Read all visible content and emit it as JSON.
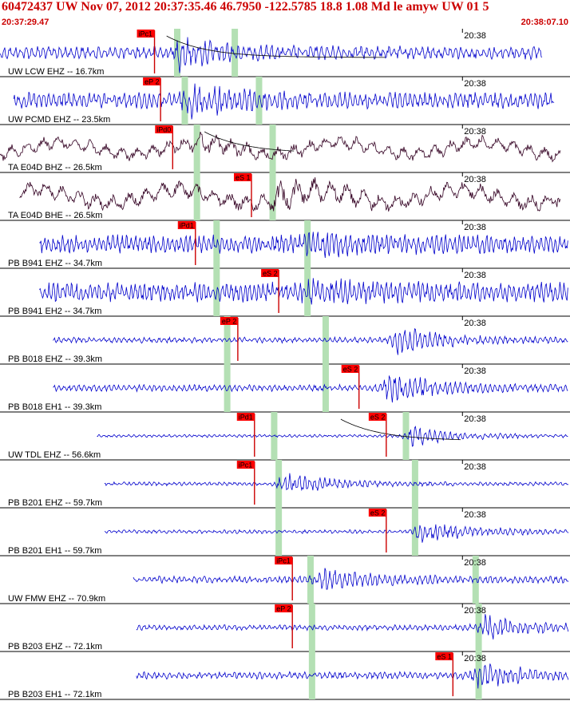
{
  "header": {
    "title": "60472437 UW Nov 07, 2012 20:37:35.46   46.7950 -122.5785 18.8 1.08 Md le amyw UW 01   5",
    "start_time": "20:37:29.47",
    "end_time": "20:38:07.10"
  },
  "colors": {
    "header_text": "#cc0000",
    "trace_blue": "#0000cc",
    "trace_dark": "#330022",
    "pick_box": "#ff0000",
    "pick_line": "#cc0000",
    "window": "#b4e0b4",
    "grid": "#000000"
  },
  "chart_data": {
    "type": "line",
    "title": "60472437 UW Nov 07, 2012 20:37:35.46   46.7950 -122.5785 18.8 1.08 Md le amyw UW 01   5",
    "xlim": [
      "20:37:29.47",
      "20:38:07.10"
    ],
    "tick_label": "20:38",
    "tick_time_s": 30.53,
    "total_s": 37.63,
    "series": [
      {
        "name": "UW LCW EHZ -- 16.7km",
        "color": "blue",
        "start_s": 0.0,
        "end_s": 35.8,
        "amp": 0.28,
        "osc": 0.9,
        "burst_s": 11.8,
        "burst_amp": 0.55,
        "picks": [
          {
            "label": "iPc1",
            "t_s": 10.2
          }
        ],
        "windows": [
          11.7,
          15.5
        ],
        "coda": [
          11.0,
          25.5
        ]
      },
      {
        "name": "UW PCMD EHZ -- 23.5km",
        "color": "blue",
        "start_s": 0.9,
        "end_s": 36.6,
        "amp": 0.35,
        "osc": 1.0,
        "burst_s": 12.5,
        "burst_amp": 0.5,
        "picks": [
          {
            "label": "eP 2",
            "t_s": 10.6
          }
        ],
        "windows": [
          12.2,
          17.1
        ],
        "coda": null
      },
      {
        "name": "TA E04D BHZ -- 26.5km",
        "color": "dark",
        "start_s": 0.0,
        "end_s": 37.0,
        "amp": 0.3,
        "osc": 0.32,
        "burst_s": 13.0,
        "burst_amp": 0.2,
        "picks": [
          {
            "label": "iPd0",
            "t_s": 11.4
          }
        ],
        "windows": [
          13.0,
          18.0
        ],
        "coda": [
          13.5,
          19.5
        ]
      },
      {
        "name": "TA E04D BHE -- 26.5km",
        "color": "dark",
        "start_s": 1.3,
        "end_s": 37.0,
        "amp": 0.35,
        "osc": 0.3,
        "burst_s": 18.3,
        "burst_amp": 0.45,
        "picks": [
          {
            "label": "eS 1",
            "t_s": 16.6
          }
        ],
        "windows": [
          13.0,
          18.0
        ],
        "coda": null
      },
      {
        "name": "PB B941 EHZ -- 34.7km",
        "color": "blue",
        "start_s": 2.6,
        "end_s": 38.2,
        "amp": 0.4,
        "osc": 1.1,
        "burst_s": 20.5,
        "burst_amp": 0.3,
        "picks": [
          {
            "label": "iPd1",
            "t_s": 12.9
          }
        ],
        "windows": [
          14.3,
          20.3
        ],
        "coda": null
      },
      {
        "name": "PB B941 EH2 -- 34.7km",
        "color": "blue",
        "start_s": 2.6,
        "end_s": 38.2,
        "amp": 0.42,
        "osc": 1.1,
        "burst_s": 20.4,
        "burst_amp": 0.35,
        "picks": [
          {
            "label": "eS 2",
            "t_s": 18.4
          }
        ],
        "windows": [
          14.3,
          20.3
        ],
        "coda": null
      },
      {
        "name": "PB B018 EHZ -- 39.3km",
        "color": "blue",
        "start_s": 3.5,
        "end_s": 38.9,
        "amp": 0.12,
        "osc": 1.0,
        "burst_s": 26.2,
        "burst_amp": 0.55,
        "picks": [
          {
            "label": "eP 2",
            "t_s": 15.7
          }
        ],
        "windows": [
          15.0,
          21.5
        ],
        "coda": null
      },
      {
        "name": "PB B018 EH1 -- 39.3km",
        "color": "blue",
        "start_s": 3.5,
        "end_s": 38.9,
        "amp": 0.14,
        "osc": 1.0,
        "burst_s": 25.6,
        "burst_amp": 0.6,
        "picks": [
          {
            "label": "eS 2",
            "t_s": 23.7
          }
        ],
        "windows": [
          15.0,
          21.5
        ],
        "coda": null
      },
      {
        "name": "UW TDL EHZ -- 56.6km",
        "color": "blue",
        "start_s": 6.4,
        "end_s": 41.9,
        "amp": 0.06,
        "osc": 1.0,
        "burst_s": 27.2,
        "burst_amp": 0.4,
        "picks": [
          {
            "label": "iPd1",
            "t_s": 16.8
          },
          {
            "label": "eS 2",
            "t_s": 25.5
          }
        ],
        "windows": [
          18.1,
          26.8
        ],
        "coda": [
          22.5,
          30.5
        ]
      },
      {
        "name": "PB B201 EHZ -- 59.7km",
        "color": "blue",
        "start_s": 6.9,
        "end_s": 42.5,
        "amp": 0.08,
        "osc": 1.0,
        "burst_s": 18.7,
        "burst_amp": 0.45,
        "picks": [
          {
            "label": "iPc1",
            "t_s": 16.8
          }
        ],
        "windows": [
          18.4,
          27.4
        ],
        "coda": null
      },
      {
        "name": "PB B201 EH1 -- 59.7km",
        "color": "blue",
        "start_s": 6.9,
        "end_s": 42.5,
        "amp": 0.08,
        "osc": 1.0,
        "burst_s": 27.7,
        "burst_amp": 0.5,
        "picks": [
          {
            "label": "eS 2",
            "t_s": 25.5
          }
        ],
        "windows": [
          18.4,
          27.4
        ],
        "coda": null
      },
      {
        "name": "UW FMW EHZ -- 70.9km",
        "color": "blue",
        "start_s": 8.8,
        "end_s": 44.4,
        "amp": 0.15,
        "osc": 1.0,
        "burst_s": 21.2,
        "burst_amp": 0.45,
        "picks": [
          {
            "label": "iPc1",
            "t_s": 19.3
          }
        ],
        "windows": [
          20.5,
          31.4
        ],
        "coda": null
      },
      {
        "name": "PB B203 EHZ -- 72.1km",
        "color": "blue",
        "start_s": 9.0,
        "end_s": 44.6,
        "amp": 0.12,
        "osc": 1.0,
        "burst_s": 32.0,
        "burst_amp": 0.45,
        "picks": [
          {
            "label": "eP 2",
            "t_s": 19.3
          }
        ],
        "windows": [
          20.6,
          31.6
        ],
        "coda": null
      },
      {
        "name": "PB B203 EH1 -- 72.1km",
        "color": "blue",
        "start_s": 9.0,
        "end_s": 44.6,
        "amp": 0.15,
        "osc": 1.0,
        "burst_s": 31.6,
        "burst_amp": 0.5,
        "picks": [
          {
            "label": "eS 1",
            "t_s": 29.9
          }
        ],
        "windows": [
          20.6,
          31.6
        ],
        "coda": null
      }
    ]
  }
}
